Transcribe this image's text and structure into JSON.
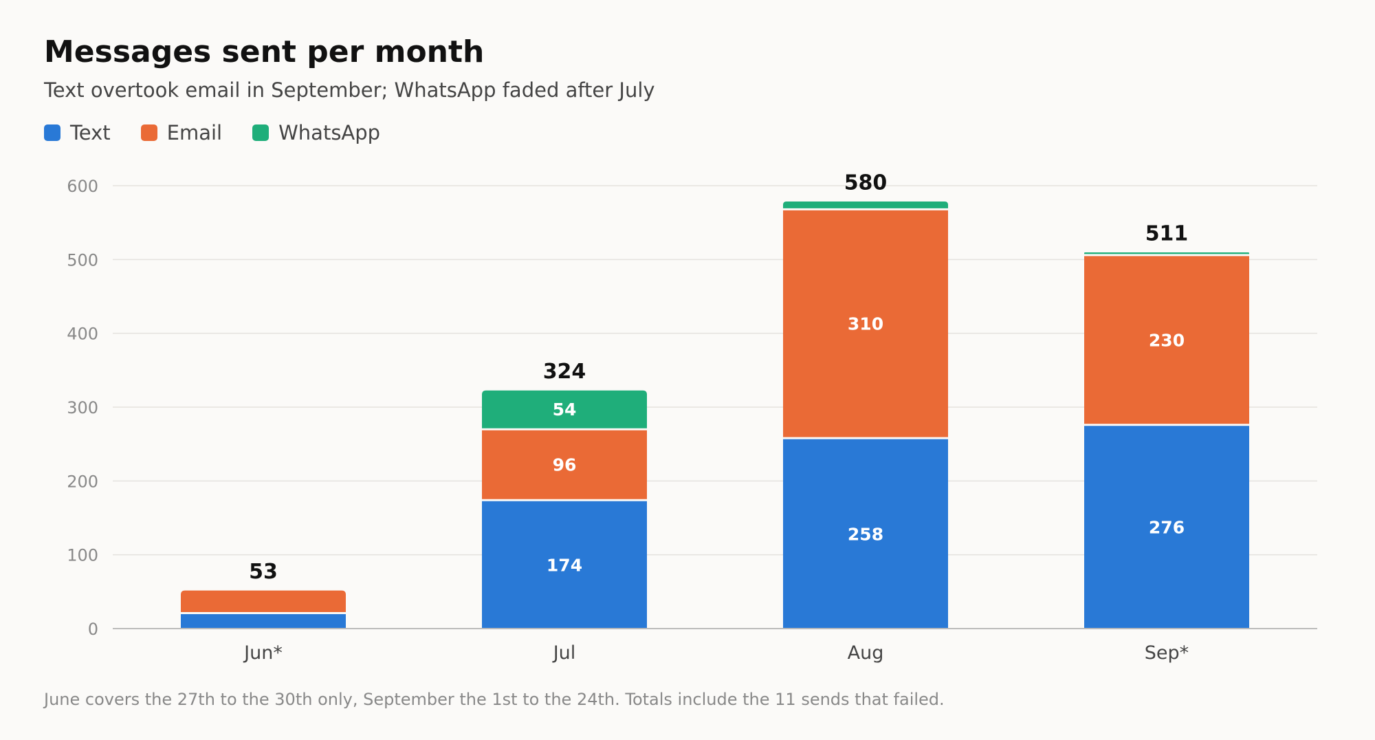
{
  "title": "Messages sent per month",
  "subtitle": "Text overtook email in September; WhatsApp faded after July",
  "footnote": "June covers the 27th to the 30th only, September the 1st to the 24th. Totals include the 11 sends that failed.",
  "legend": [
    {
      "label": "Text",
      "color": "#2979d6"
    },
    {
      "label": "Email",
      "color": "#ea6a36"
    },
    {
      "label": "WhatsApp",
      "color": "#1fae7a"
    }
  ],
  "chart_data": {
    "type": "bar",
    "stacked": true,
    "title": "Messages sent per month",
    "subtitle": "Text overtook email in September; WhatsApp faded after July",
    "categories": [
      "Jun*",
      "Jul",
      "Aug",
      "Sep*"
    ],
    "series": [
      {
        "name": "Text",
        "color": "#2979d6",
        "values": [
          21,
          174,
          258,
          276
        ],
        "labels": [
          "",
          "174",
          "258",
          "276"
        ]
      },
      {
        "name": "Email",
        "color": "#ea6a36",
        "values": [
          32,
          96,
          310,
          230
        ],
        "labels": [
          "",
          "96",
          "310",
          "230"
        ]
      },
      {
        "name": "WhatsApp",
        "color": "#1fae7a",
        "values": [
          0,
          54,
          12,
          5
        ],
        "labels": [
          "",
          "54",
          "",
          ""
        ]
      }
    ],
    "totals": [
      53,
      324,
      580,
      511
    ],
    "ylim": [
      0,
      600
    ],
    "yticks": [
      0,
      100,
      200,
      300,
      400,
      500,
      600
    ],
    "grid": true,
    "legend_position": "top-left",
    "xlabel": "",
    "ylabel": ""
  }
}
